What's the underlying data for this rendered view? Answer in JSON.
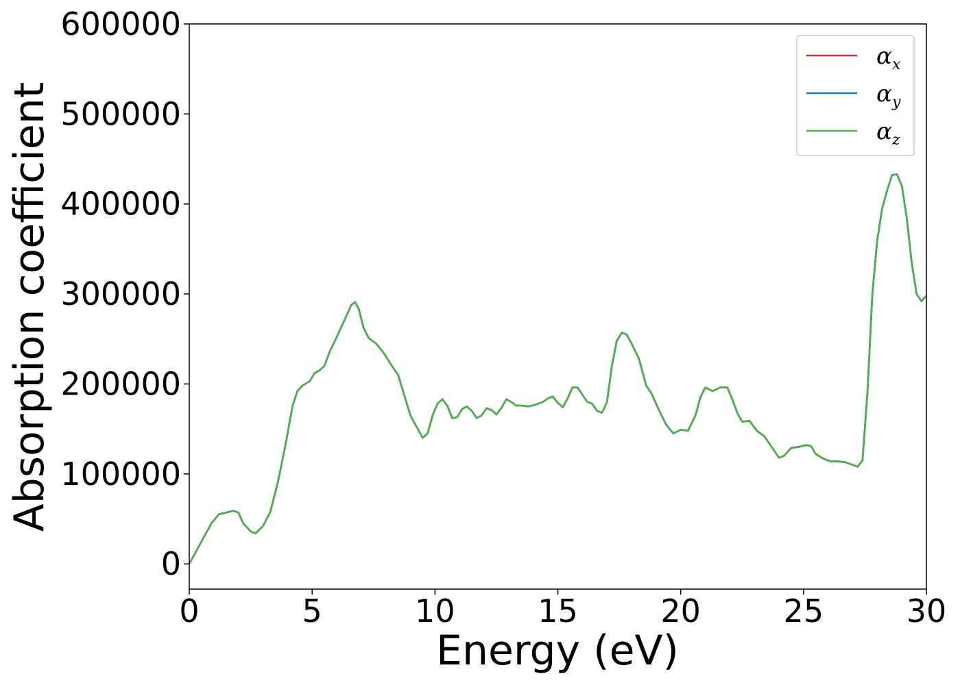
{
  "chart_data": {
    "type": "line",
    "xlabel": "Energy (eV)",
    "ylabel": "Absorption coefficient",
    "xlim": [
      0,
      30
    ],
    "ylim": [
      -28000,
      600000
    ],
    "xticks": [
      0,
      5,
      10,
      15,
      20,
      25,
      30
    ],
    "xtick_labels": [
      "0",
      "5",
      "10",
      "15",
      "20",
      "25",
      "30"
    ],
    "yticks": [
      0,
      100000,
      200000,
      300000,
      400000,
      500000,
      600000
    ],
    "ytick_labels": [
      "0",
      "100000",
      "200000",
      "300000",
      "400000",
      "500000",
      "600000"
    ],
    "grid": false,
    "legend_position": "top-right",
    "legend": [
      {
        "base": "α",
        "sub": "x",
        "color": "#d62728"
      },
      {
        "base": "α",
        "sub": "y",
        "color": "#1f77b4"
      },
      {
        "base": "α",
        "sub": "z",
        "color": "#4daf4a"
      }
    ],
    "x": [
      0,
      0.3,
      0.6,
      0.9,
      1.2,
      1.5,
      1.8,
      2.0,
      2.2,
      2.5,
      2.7,
      3.0,
      3.3,
      3.6,
      3.9,
      4.2,
      4.4,
      4.6,
      4.9,
      5.1,
      5.3,
      5.5,
      5.7,
      6.0,
      6.3,
      6.6,
      6.75,
      6.9,
      7.1,
      7.3,
      7.6,
      7.9,
      8.2,
      8.5,
      8.8,
      9.0,
      9.3,
      9.5,
      9.7,
      9.9,
      10.1,
      10.3,
      10.5,
      10.7,
      10.9,
      11.1,
      11.3,
      11.5,
      11.7,
      11.9,
      12.1,
      12.3,
      12.5,
      12.7,
      12.9,
      13.1,
      13.3,
      13.5,
      13.8,
      14.1,
      14.4,
      14.6,
      14.8,
      15.0,
      15.2,
      15.4,
      15.6,
      15.8,
      16.0,
      16.2,
      16.4,
      16.6,
      16.8,
      17.0,
      17.2,
      17.4,
      17.6,
      17.8,
      18.0,
      18.3,
      18.6,
      18.8,
      19.1,
      19.4,
      19.7,
      20.0,
      20.3,
      20.6,
      20.8,
      21.0,
      21.3,
      21.6,
      21.9,
      22.1,
      22.3,
      22.5,
      22.8,
      23.1,
      23.4,
      23.7,
      24.0,
      24.2,
      24.5,
      24.8,
      25.1,
      25.3,
      25.5,
      25.8,
      26.1,
      26.4,
      26.7,
      27.0,
      27.2,
      27.4,
      27.6,
      27.8,
      28.0,
      28.2,
      28.4,
      28.6,
      28.8,
      29.0,
      29.2,
      29.4,
      29.6,
      29.8,
      30.0
    ],
    "series": [
      {
        "y": [
          0,
          15000,
          30000,
          45000,
          55000,
          57000,
          59000,
          57000,
          45000,
          36000,
          34000,
          42000,
          58000,
          90000,
          130000,
          175000,
          192000,
          198000,
          203000,
          212000,
          215000,
          220000,
          235000,
          252000,
          270000,
          288000,
          291000,
          283000,
          262000,
          251000,
          245000,
          235000,
          222000,
          210000,
          183000,
          165000,
          150000,
          140000,
          145000,
          165000,
          178000,
          183000,
          176000,
          162000,
          163000,
          172000,
          175000,
          170000,
          162000,
          165000,
          173000,
          171000,
          166000,
          173000,
          183000,
          180000,
          176000,
          176000,
          175000,
          177000,
          180000,
          184000,
          186000,
          179000,
          174000,
          184000,
          196000,
          196000,
          188000,
          180000,
          178000,
          170000,
          168000,
          180000,
          220000,
          248000,
          257000,
          255000,
          245000,
          228000,
          198000,
          190000,
          172000,
          155000,
          145000,
          149000,
          148000,
          165000,
          185000,
          196000,
          192000,
          196000,
          196000,
          183000,
          168000,
          158000,
          159000,
          148000,
          142000,
          130000,
          118000,
          120000,
          129000,
          130000,
          132000,
          131000,
          122000,
          117000,
          114000,
          114000,
          113000,
          110000,
          108000,
          115000,
          190000,
          300000,
          360000,
          395000,
          415000,
          432000,
          433000,
          420000,
          385000,
          335000,
          300000,
          292000,
          298000
        ]
      },
      {
        "y": [
          0,
          15000,
          30000,
          45000,
          55000,
          57000,
          59000,
          57000,
          45000,
          36000,
          34000,
          42000,
          58000,
          90000,
          130000,
          175000,
          192000,
          198000,
          203000,
          212000,
          215000,
          220000,
          235000,
          252000,
          270000,
          288000,
          291000,
          283000,
          262000,
          251000,
          245000,
          235000,
          222000,
          210000,
          183000,
          165000,
          150000,
          140000,
          145000,
          165000,
          178000,
          183000,
          176000,
          162000,
          163000,
          172000,
          175000,
          170000,
          162000,
          165000,
          173000,
          171000,
          166000,
          173000,
          183000,
          180000,
          176000,
          176000,
          175000,
          177000,
          180000,
          184000,
          186000,
          179000,
          174000,
          184000,
          196000,
          196000,
          188000,
          180000,
          178000,
          170000,
          168000,
          180000,
          220000,
          248000,
          257000,
          255000,
          245000,
          228000,
          198000,
          190000,
          172000,
          155000,
          145000,
          149000,
          148000,
          165000,
          185000,
          196000,
          192000,
          196000,
          196000,
          183000,
          168000,
          158000,
          159000,
          148000,
          142000,
          130000,
          118000,
          120000,
          129000,
          130000,
          132000,
          131000,
          122000,
          117000,
          114000,
          114000,
          113000,
          110000,
          108000,
          115000,
          190000,
          300000,
          360000,
          395000,
          415000,
          432000,
          433000,
          420000,
          385000,
          335000,
          300000,
          292000,
          298000
        ]
      },
      {
        "y": [
          0,
          15000,
          30000,
          45000,
          55000,
          57000,
          59000,
          57000,
          45000,
          36000,
          34000,
          42000,
          58000,
          90000,
          130000,
          175000,
          192000,
          198000,
          203000,
          212000,
          215000,
          220000,
          235000,
          252000,
          270000,
          288000,
          291000,
          283000,
          262000,
          251000,
          245000,
          235000,
          222000,
          210000,
          183000,
          165000,
          150000,
          140000,
          145000,
          165000,
          178000,
          183000,
          176000,
          162000,
          163000,
          172000,
          175000,
          170000,
          162000,
          165000,
          173000,
          171000,
          166000,
          173000,
          183000,
          180000,
          176000,
          176000,
          175000,
          177000,
          180000,
          184000,
          186000,
          179000,
          174000,
          184000,
          196000,
          196000,
          188000,
          180000,
          178000,
          170000,
          168000,
          180000,
          220000,
          248000,
          257000,
          255000,
          245000,
          228000,
          198000,
          190000,
          172000,
          155000,
          145000,
          149000,
          148000,
          165000,
          185000,
          196000,
          192000,
          196000,
          196000,
          183000,
          168000,
          158000,
          159000,
          148000,
          142000,
          130000,
          118000,
          120000,
          129000,
          130000,
          132000,
          131000,
          122000,
          117000,
          114000,
          114000,
          113000,
          110000,
          108000,
          115000,
          190000,
          300000,
          360000,
          395000,
          415000,
          432000,
          433000,
          420000,
          385000,
          335000,
          300000,
          292000,
          298000
        ]
      }
    ]
  }
}
